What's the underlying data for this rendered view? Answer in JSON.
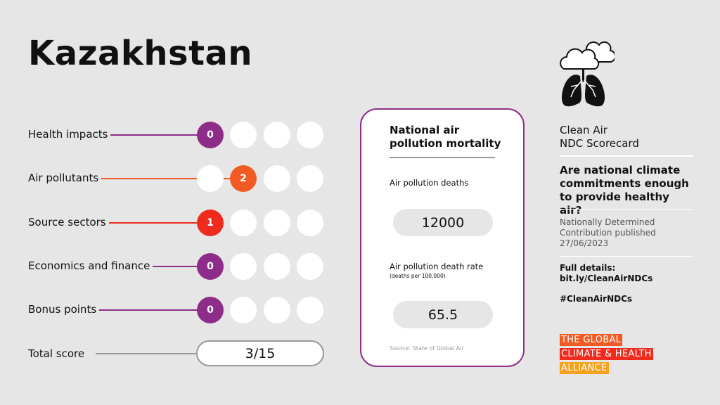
{
  "country": "Kazakhstan",
  "colors": {
    "purple": "#8e2c8a",
    "orange": "#f15a22",
    "red": "#ee2b1d",
    "background": "#e6e6e6"
  },
  "rows": [
    {
      "label": "Health impacts",
      "score": "0",
      "max_dots": 4,
      "color": "#8e2c8a"
    },
    {
      "label": "Air pollutants",
      "score": "2",
      "max_dots": 4,
      "color": "#f15a22"
    },
    {
      "label": "Source sectors",
      "score": "1",
      "max_dots": 4,
      "color": "#ee2b1d"
    },
    {
      "label": "Economics and finance",
      "score": "0",
      "max_dots": 4,
      "color": "#8e2c8a"
    },
    {
      "label": "Bonus points",
      "score": "0",
      "max_dots": 4,
      "color": "#8e2c8a"
    }
  ],
  "total": {
    "label": "Total score",
    "value": "3/15"
  },
  "mortality": {
    "title": "National air pollution mortality",
    "deaths_label": "Air pollution deaths",
    "deaths_value": "12000",
    "rate_label": "Air pollution death rate",
    "rate_unit": "(deaths per 100,000)",
    "rate_value": "65.5",
    "source": "Source: State of Global Air"
  },
  "sidebar": {
    "icon": "cloud-lungs-icon",
    "title_line1": "Clean Air",
    "title_line2": "NDC Scorecard",
    "question": "Are national climate commitments enough to provide healthy air?",
    "ndc_line1": "Nationally Determined",
    "ndc_line2": "Contribution published",
    "ndc_date": "27/06/2023",
    "details_label": "Full details:",
    "details_link": "bit.ly/CleanAirNDCs",
    "hashtag": "#CleanAirNDCs",
    "logo": [
      "THE GLOBAL",
      "CLIMATE & HEALTH",
      "ALLIANCE"
    ]
  }
}
